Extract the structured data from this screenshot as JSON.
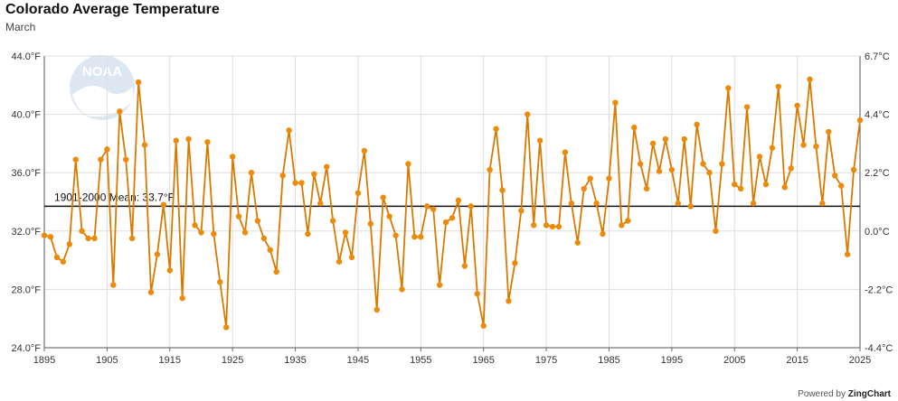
{
  "header": {
    "title": "Colorado Average Temperature",
    "subtitle": "March"
  },
  "footer": {
    "powered_by": "Powered by",
    "brand": "ZingChart"
  },
  "logo": {
    "text": "NOAA"
  },
  "chart_data": {
    "type": "line",
    "title": "Colorado Average Temperature",
    "subtitle": "March",
    "x": [
      1895,
      1896,
      1897,
      1898,
      1899,
      1900,
      1901,
      1902,
      1903,
      1904,
      1905,
      1906,
      1907,
      1908,
      1909,
      1910,
      1911,
      1912,
      1913,
      1914,
      1915,
      1916,
      1917,
      1918,
      1919,
      1920,
      1921,
      1922,
      1923,
      1924,
      1925,
      1926,
      1927,
      1928,
      1929,
      1930,
      1931,
      1932,
      1933,
      1934,
      1935,
      1936,
      1937,
      1938,
      1939,
      1940,
      1941,
      1942,
      1943,
      1944,
      1945,
      1946,
      1947,
      1948,
      1949,
      1950,
      1951,
      1952,
      1953,
      1954,
      1955,
      1956,
      1957,
      1958,
      1959,
      1960,
      1961,
      1962,
      1963,
      1964,
      1965,
      1966,
      1967,
      1968,
      1969,
      1970,
      1971,
      1972,
      1973,
      1974,
      1975,
      1976,
      1977,
      1978,
      1979,
      1980,
      1981,
      1982,
      1983,
      1984,
      1985,
      1986,
      1987,
      1988,
      1989,
      1990,
      1991,
      1992,
      1993,
      1994,
      1995,
      1996,
      1997,
      1998,
      1999,
      2000,
      2001,
      2002,
      2003,
      2004,
      2005,
      2006,
      2007,
      2008,
      2009,
      2010,
      2011,
      2012,
      2013,
      2014,
      2015,
      2016,
      2017,
      2018,
      2019,
      2020,
      2021,
      2022,
      2023,
      2024,
      2025
    ],
    "series": [
      {
        "values": [
          31.7,
          31.6,
          30.2,
          29.9,
          31.1,
          36.9,
          32.0,
          31.5,
          31.5,
          36.9,
          37.6,
          28.3,
          40.2,
          36.9,
          31.5,
          42.2,
          37.9,
          27.8,
          30.4,
          33.8,
          29.3,
          38.2,
          27.4,
          38.3,
          32.4,
          31.9,
          38.1,
          31.8,
          28.5,
          25.4,
          37.1,
          33.0,
          31.9,
          36.0,
          32.7,
          31.5,
          30.7,
          29.2,
          35.8,
          38.9,
          35.3,
          35.3,
          31.8,
          35.9,
          33.9,
          36.4,
          32.7,
          29.9,
          31.9,
          30.2,
          34.6,
          37.5,
          32.5,
          26.6,
          34.3,
          33.0,
          31.7,
          28.0,
          36.6,
          31.6,
          31.6,
          33.7,
          33.5,
          28.3,
          32.6,
          32.9,
          34.1,
          29.6,
          33.7,
          27.7,
          25.5,
          36.2,
          39.0,
          34.8,
          27.2,
          29.8,
          33.4,
          40.0,
          32.4,
          38.2,
          32.4,
          32.3,
          32.3,
          37.4,
          33.9,
          31.2,
          34.9,
          35.6,
          33.9,
          31.8,
          35.6,
          40.8,
          32.4,
          32.7,
          39.1,
          36.6,
          34.9,
          38.0,
          36.1,
          38.3,
          36.2,
          33.9,
          38.3,
          33.7,
          39.3,
          36.6,
          36.0,
          32.0,
          36.6,
          41.8,
          35.2,
          34.9,
          40.5,
          33.9,
          37.1,
          35.2,
          37.7,
          41.9,
          35.0,
          36.3,
          40.6,
          37.9,
          42.4,
          37.8,
          33.9,
          38.8,
          35.8,
          35.1,
          30.4,
          36.2,
          39.6
        ]
      }
    ],
    "xlim": [
      1895,
      2025
    ],
    "ylim": [
      24.0,
      44.0
    ],
    "y_ticks": [
      "24.0°F",
      "28.0°F",
      "32.0°F",
      "36.0°F",
      "40.0°F",
      "44.0°F"
    ],
    "y2_ticks": [
      "-4.4°C",
      "-2.2°C",
      "0.0°C",
      "2.2°C",
      "4.4°C",
      "6.7°C"
    ],
    "x_ticks": [
      "1895",
      "1905",
      "1915",
      "1925",
      "1935",
      "1945",
      "1955",
      "1965",
      "1975",
      "1985",
      "1995",
      "2005",
      "2015",
      "2025"
    ],
    "mean": {
      "value": 33.7,
      "label": "1901-2000 Mean: 33.7°F"
    },
    "grid": true,
    "colors": {
      "line": "#d97a00",
      "marker": "#ee8a0a",
      "mean": "#111111",
      "grid": "#dddddd"
    }
  }
}
